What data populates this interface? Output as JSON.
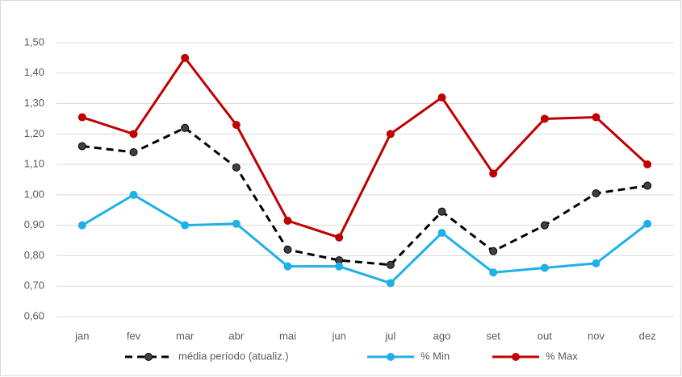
{
  "chart_data": {
    "type": "line",
    "categories": [
      "jan",
      "fev",
      "mar",
      "abr",
      "mai",
      "jun",
      "jul",
      "ago",
      "set",
      "out",
      "nov",
      "dez"
    ],
    "series": [
      {
        "name": "média período (atualiz.)",
        "color": "#000000",
        "marker_color": "#404040",
        "dashed": true,
        "values": [
          1.16,
          1.14,
          1.22,
          1.09,
          0.82,
          0.785,
          0.77,
          0.945,
          0.815,
          0.9,
          1.005,
          1.03
        ]
      },
      {
        "name": "% Min",
        "color": "#1fb0e8",
        "marker_color": "#1fb0e8",
        "dashed": false,
        "values": [
          0.9,
          1.0,
          0.9,
          0.905,
          0.765,
          0.765,
          0.71,
          0.875,
          0.745,
          0.76,
          0.775,
          0.905
        ]
      },
      {
        "name": "% Max",
        "color": "#c00000",
        "marker_color": "#c00000",
        "dashed": false,
        "values": [
          1.255,
          1.2,
          1.45,
          1.23,
          0.915,
          0.86,
          1.2,
          1.32,
          1.07,
          1.25,
          1.255,
          1.1
        ]
      }
    ],
    "ylim": [
      0.6,
      1.5
    ],
    "yticks": [
      {
        "value": 0.6,
        "label": "0,60"
      },
      {
        "value": 0.7,
        "label": "0,70"
      },
      {
        "value": 0.8,
        "label": "0,80"
      },
      {
        "value": 0.9,
        "label": "0,90"
      },
      {
        "value": 1.0,
        "label": "1,00"
      },
      {
        "value": 1.1,
        "label": "1,10"
      },
      {
        "value": 1.2,
        "label": "1,20"
      },
      {
        "value": 1.3,
        "label": "1,30"
      },
      {
        "value": 1.4,
        "label": "1,40"
      },
      {
        "value": 1.5,
        "label": "1,50"
      }
    ],
    "grid": true,
    "legend": "bottom"
  }
}
